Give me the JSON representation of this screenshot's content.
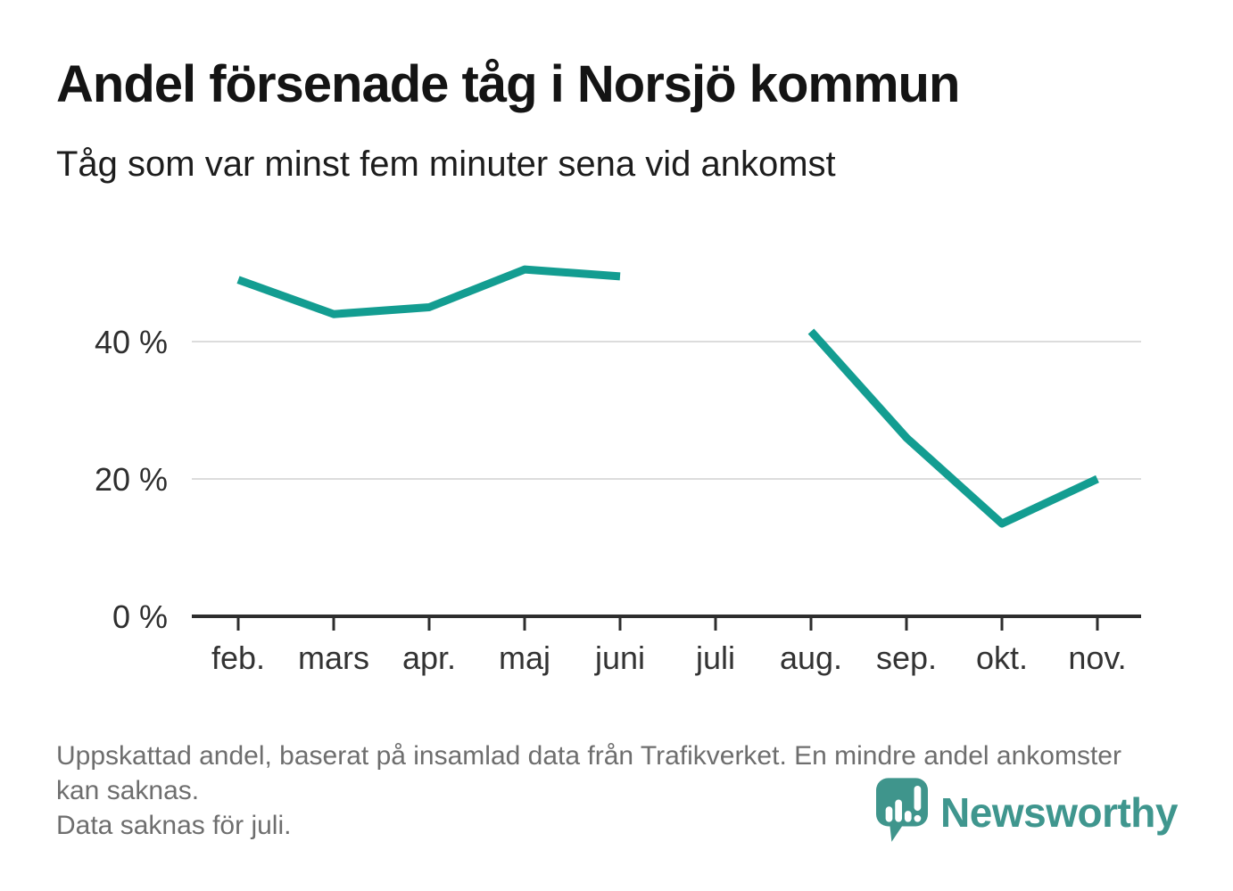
{
  "header": {
    "title": "Andel försenade tåg i Norsjö kommun",
    "subtitle": "Tåg som var minst fem minuter sena vid ankomst"
  },
  "chart_data": {
    "type": "line",
    "title": "Andel försenade tåg i Norsjö kommun",
    "subtitle": "Tåg som var minst fem minuter sena vid ankomst",
    "categories": [
      "feb.",
      "mars",
      "apr.",
      "maj",
      "juni",
      "juli",
      "aug.",
      "sep.",
      "okt.",
      "nov."
    ],
    "series": [
      {
        "name": "Andel försenade tåg (%)",
        "values": [
          49,
          44,
          45,
          50.5,
          49.5,
          null,
          41.5,
          26,
          13.5,
          20
        ]
      }
    ],
    "unit": "%",
    "ylim": [
      0,
      55
    ],
    "y_ticks": [
      0,
      20,
      40
    ],
    "y_tick_labels": [
      "0 %",
      "20 %",
      "40 %"
    ],
    "grid": "horizontal",
    "legend": "none",
    "line_color": "#139d91",
    "note": "Gap at juli – data missing"
  },
  "footer": {
    "note_line1": "Uppskattad andel, baserat på insamlad data från Trafikverket. En mindre andel ankomster kan saknas.",
    "note_line2": "Data saknas för juli.",
    "brand": "Newsworthy"
  },
  "colors": {
    "line": "#139d91",
    "grid": "#dcdcdc",
    "axis": "#2d2d2d",
    "title_text": "#141414",
    "footnote_text": "#6e6e6e",
    "brand_teal": "#3f968e"
  }
}
